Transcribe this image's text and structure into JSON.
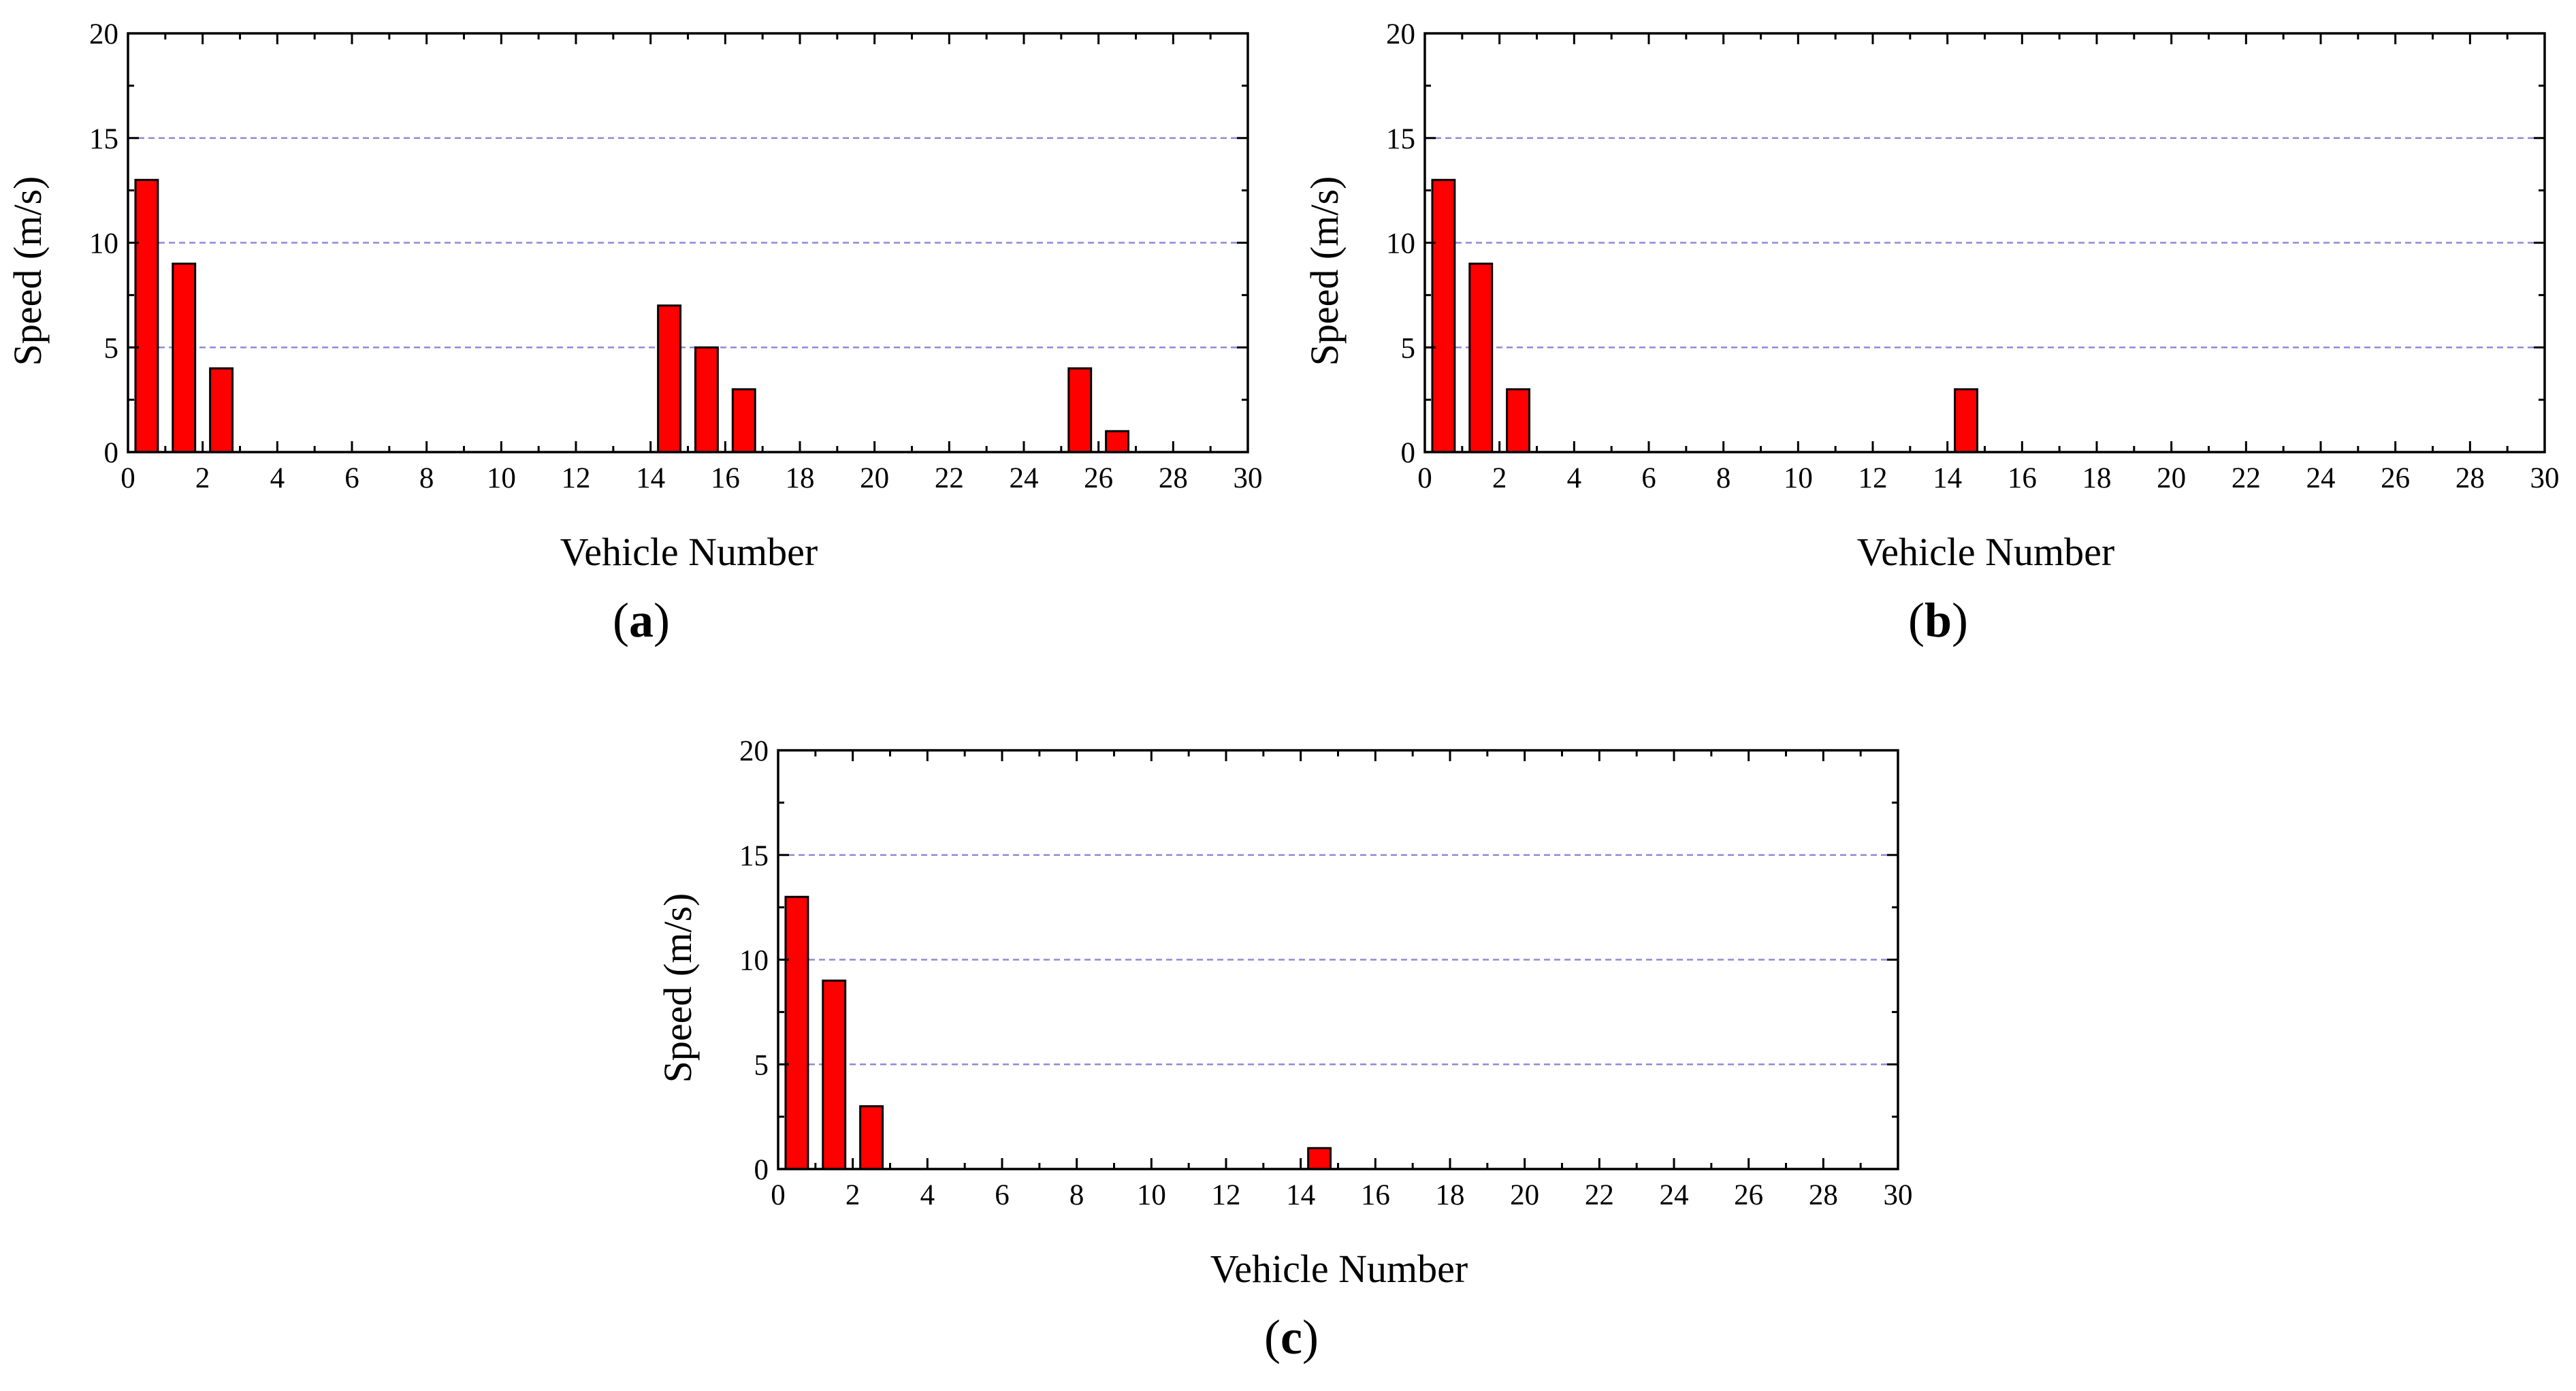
{
  "colors": {
    "bar_fill": "#ff0000",
    "bar_stroke": "#000000",
    "grid": "#8c8cd8",
    "axis": "#000000"
  },
  "chart_data": [
    {
      "type": "bar",
      "panel_label": "a",
      "xlabel": "Vehicle Number",
      "ylabel": "Speed (m/s)",
      "xlim": [
        0,
        30
      ],
      "ylim": [
        0,
        20
      ],
      "xticks": [
        0,
        2,
        4,
        6,
        8,
        10,
        12,
        14,
        16,
        18,
        20,
        22,
        24,
        26,
        28,
        30
      ],
      "yticks": [
        0,
        5,
        10,
        15,
        20
      ],
      "grid": "horizontal dashed",
      "bars": [
        {
          "x": 0.5,
          "value": 13
        },
        {
          "x": 1.5,
          "value": 9
        },
        {
          "x": 2.5,
          "value": 4
        },
        {
          "x": 14.5,
          "value": 7
        },
        {
          "x": 15.5,
          "value": 5
        },
        {
          "x": 16.5,
          "value": 3
        },
        {
          "x": 25.5,
          "value": 4
        },
        {
          "x": 26.5,
          "value": 1
        }
      ]
    },
    {
      "type": "bar",
      "panel_label": "b",
      "xlabel": "Vehicle Number",
      "ylabel": "Speed (m/s)",
      "xlim": [
        0,
        30
      ],
      "ylim": [
        0,
        20
      ],
      "xticks": [
        0,
        2,
        4,
        6,
        8,
        10,
        12,
        14,
        16,
        18,
        20,
        22,
        24,
        26,
        28,
        30
      ],
      "yticks": [
        0,
        5,
        10,
        15,
        20
      ],
      "grid": "horizontal dashed",
      "bars": [
        {
          "x": 0.5,
          "value": 13
        },
        {
          "x": 1.5,
          "value": 9
        },
        {
          "x": 2.5,
          "value": 3
        },
        {
          "x": 14.5,
          "value": 3
        }
      ]
    },
    {
      "type": "bar",
      "panel_label": "c",
      "xlabel": "Vehicle Number",
      "ylabel": "Speed (m/s)",
      "xlim": [
        0,
        30
      ],
      "ylim": [
        0,
        20
      ],
      "xticks": [
        0,
        2,
        4,
        6,
        8,
        10,
        12,
        14,
        16,
        18,
        20,
        22,
        24,
        26,
        28,
        30
      ],
      "yticks": [
        0,
        5,
        10,
        15,
        20
      ],
      "grid": "horizontal dashed",
      "bars": [
        {
          "x": 0.5,
          "value": 13
        },
        {
          "x": 1.5,
          "value": 9
        },
        {
          "x": 2.5,
          "value": 3
        },
        {
          "x": 14.5,
          "value": 1
        }
      ]
    }
  ]
}
